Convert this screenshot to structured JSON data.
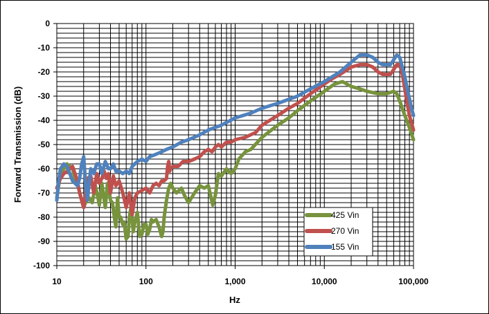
{
  "chart_data": {
    "type": "line",
    "title": "",
    "xlabel": "Hz",
    "ylabel": "Forward Transmission (dB)",
    "x_scale": "log",
    "xlim": [
      10,
      100000
    ],
    "ylim": [
      -100,
      0
    ],
    "x_ticks": [
      10,
      100,
      1000,
      10000,
      100000
    ],
    "x_tick_labels": [
      "10",
      "100",
      "1,000",
      "10,000",
      "100,000"
    ],
    "y_ticks": [
      0,
      -10,
      -20,
      -30,
      -40,
      -50,
      -60,
      -70,
      -80,
      -90,
      -100
    ],
    "y_tick_labels": [
      "0",
      "-10",
      "-20",
      "-30",
      "-40",
      "-50",
      "-60",
      "-70",
      "-80",
      "-90",
      "-100"
    ],
    "grid": true,
    "legend_position": "bottom-right",
    "series": [
      {
        "name": "425 Vin",
        "color": "#77933c",
        "points": [
          [
            10,
            -72
          ],
          [
            11,
            -62
          ],
          [
            12,
            -60
          ],
          [
            13,
            -58
          ],
          [
            15,
            -60
          ],
          [
            16,
            -64
          ],
          [
            17,
            -66
          ],
          [
            19,
            -73
          ],
          [
            20,
            -76
          ],
          [
            21,
            -74
          ],
          [
            23,
            -72
          ],
          [
            25,
            -74
          ],
          [
            27,
            -67
          ],
          [
            29,
            -72
          ],
          [
            30,
            -75
          ],
          [
            32,
            -66
          ],
          [
            35,
            -76
          ],
          [
            37,
            -66
          ],
          [
            39,
            -70
          ],
          [
            40,
            -73
          ],
          [
            42,
            -74
          ],
          [
            45,
            -82
          ],
          [
            46,
            -84
          ],
          [
            48,
            -72
          ],
          [
            50,
            -80
          ],
          [
            52,
            -80
          ],
          [
            55,
            -83
          ],
          [
            57,
            -82
          ],
          [
            60,
            -89
          ],
          [
            63,
            -88
          ],
          [
            65,
            -80
          ],
          [
            68,
            -76
          ],
          [
            72,
            -86
          ],
          [
            75,
            -82
          ],
          [
            80,
            -78
          ],
          [
            85,
            -88
          ],
          [
            90,
            -87
          ],
          [
            95,
            -83
          ],
          [
            100,
            -83
          ],
          [
            105,
            -87
          ],
          [
            110,
            -85
          ],
          [
            115,
            -81
          ],
          [
            120,
            -82
          ],
          [
            130,
            -81
          ],
          [
            140,
            -84
          ],
          [
            150,
            -88
          ],
          [
            155,
            -86
          ],
          [
            160,
            -80
          ],
          [
            170,
            -73
          ],
          [
            180,
            -68
          ],
          [
            190,
            -66
          ],
          [
            200,
            -68
          ],
          [
            220,
            -70
          ],
          [
            250,
            -68
          ],
          [
            270,
            -71
          ],
          [
            300,
            -74
          ],
          [
            350,
            -70
          ],
          [
            400,
            -67
          ],
          [
            450,
            -68
          ],
          [
            500,
            -67
          ],
          [
            530,
            -71
          ],
          [
            560,
            -75
          ],
          [
            600,
            -71
          ],
          [
            650,
            -62
          ],
          [
            700,
            -63
          ],
          [
            800,
            -60
          ],
          [
            900,
            -62
          ],
          [
            1000,
            -60
          ],
          [
            1100,
            -56
          ],
          [
            1300,
            -53
          ],
          [
            1500,
            -52
          ],
          [
            2000,
            -47
          ],
          [
            3000,
            -42
          ],
          [
            4000,
            -39
          ],
          [
            5000,
            -36
          ],
          [
            7000,
            -32
          ],
          [
            10000,
            -28
          ],
          [
            13000,
            -25
          ],
          [
            16000,
            -24
          ],
          [
            20000,
            -26
          ],
          [
            25000,
            -27
          ],
          [
            30000,
            -28
          ],
          [
            40000,
            -29
          ],
          [
            50000,
            -29
          ],
          [
            60000,
            -28
          ],
          [
            65000,
            -29
          ],
          [
            70000,
            -32
          ],
          [
            80000,
            -38
          ],
          [
            90000,
            -43
          ],
          [
            100000,
            -48
          ]
        ]
      },
      {
        "name": "270 Vin",
        "color": "#c0504d",
        "points": [
          [
            10,
            -68
          ],
          [
            11,
            -64
          ],
          [
            12,
            -62
          ],
          [
            13,
            -61
          ],
          [
            15,
            -59
          ],
          [
            16,
            -62
          ],
          [
            17,
            -65
          ],
          [
            18,
            -70
          ],
          [
            20,
            -76
          ],
          [
            22,
            -64
          ],
          [
            24,
            -63
          ],
          [
            26,
            -70
          ],
          [
            28,
            -62
          ],
          [
            30,
            -66
          ],
          [
            32,
            -64
          ],
          [
            34,
            -61
          ],
          [
            36,
            -64
          ],
          [
            38,
            -62
          ],
          [
            40,
            -70
          ],
          [
            43,
            -63
          ],
          [
            46,
            -67
          ],
          [
            50,
            -65
          ],
          [
            55,
            -70
          ],
          [
            60,
            -76
          ],
          [
            65,
            -70
          ],
          [
            70,
            -79
          ],
          [
            75,
            -72
          ],
          [
            80,
            -70
          ],
          [
            90,
            -69
          ],
          [
            100,
            -68
          ],
          [
            110,
            -70
          ],
          [
            120,
            -67
          ],
          [
            130,
            -66
          ],
          [
            140,
            -67
          ],
          [
            150,
            -65
          ],
          [
            160,
            -65
          ],
          [
            170,
            -64
          ],
          [
            175,
            -59
          ],
          [
            180,
            -57
          ],
          [
            185,
            -61
          ],
          [
            190,
            -60
          ],
          [
            200,
            -59
          ],
          [
            230,
            -59
          ],
          [
            260,
            -57
          ],
          [
            300,
            -57
          ],
          [
            350,
            -56
          ],
          [
            400,
            -55
          ],
          [
            450,
            -53
          ],
          [
            500,
            -52
          ],
          [
            550,
            -53
          ],
          [
            600,
            -51
          ],
          [
            650,
            -50
          ],
          [
            700,
            -51
          ],
          [
            800,
            -49
          ],
          [
            900,
            -49
          ],
          [
            1000,
            -48
          ],
          [
            1300,
            -47
          ],
          [
            1700,
            -45
          ],
          [
            2000,
            -42
          ],
          [
            3000,
            -38
          ],
          [
            4000,
            -35
          ],
          [
            5000,
            -33
          ],
          [
            7000,
            -29
          ],
          [
            10000,
            -25
          ],
          [
            12000,
            -23
          ],
          [
            15000,
            -21
          ],
          [
            20000,
            -18
          ],
          [
            25000,
            -17
          ],
          [
            30000,
            -17
          ],
          [
            35000,
            -18
          ],
          [
            40000,
            -20
          ],
          [
            45000,
            -21
          ],
          [
            50000,
            -21
          ],
          [
            55000,
            -21
          ],
          [
            60000,
            -19
          ],
          [
            65000,
            -17
          ],
          [
            70000,
            -17
          ],
          [
            75000,
            -21
          ],
          [
            80000,
            -27
          ],
          [
            85000,
            -33
          ],
          [
            90000,
            -38
          ],
          [
            95000,
            -41
          ],
          [
            100000,
            -44
          ]
        ]
      },
      {
        "name": "155 Vin",
        "color": "#4f81bd",
        "points": [
          [
            10,
            -73
          ],
          [
            10.5,
            -65
          ],
          [
            11,
            -60
          ],
          [
            12,
            -58
          ],
          [
            13,
            -59
          ],
          [
            14,
            -62
          ],
          [
            15,
            -65
          ],
          [
            16,
            -66
          ],
          [
            17,
            -67
          ],
          [
            18,
            -64
          ],
          [
            19,
            -58
          ],
          [
            20,
            -55
          ],
          [
            21,
            -66
          ],
          [
            22,
            -73
          ],
          [
            24,
            -60
          ],
          [
            26,
            -62
          ],
          [
            28,
            -58
          ],
          [
            30,
            -58
          ],
          [
            32,
            -62
          ],
          [
            35,
            -57
          ],
          [
            38,
            -60
          ],
          [
            40,
            -60
          ],
          [
            43,
            -58
          ],
          [
            46,
            -61
          ],
          [
            50,
            -61
          ],
          [
            55,
            -62
          ],
          [
            60,
            -61
          ],
          [
            65,
            -62
          ],
          [
            70,
            -59
          ],
          [
            80,
            -57
          ],
          [
            90,
            -56
          ],
          [
            100,
            -57
          ],
          [
            110,
            -55
          ],
          [
            130,
            -54
          ],
          [
            150,
            -53
          ],
          [
            170,
            -52
          ],
          [
            200,
            -51
          ],
          [
            250,
            -49
          ],
          [
            300,
            -48
          ],
          [
            400,
            -46
          ],
          [
            500,
            -44
          ],
          [
            700,
            -42
          ],
          [
            1000,
            -39
          ],
          [
            1500,
            -37
          ],
          [
            2000,
            -35
          ],
          [
            3000,
            -33
          ],
          [
            5000,
            -30
          ],
          [
            7000,
            -27
          ],
          [
            10000,
            -24
          ],
          [
            15000,
            -20
          ],
          [
            20000,
            -16
          ],
          [
            25000,
            -13
          ],
          [
            30000,
            -13
          ],
          [
            35000,
            -14
          ],
          [
            40000,
            -16
          ],
          [
            45000,
            -17
          ],
          [
            50000,
            -17
          ],
          [
            55000,
            -17
          ],
          [
            60000,
            -15
          ],
          [
            65000,
            -13
          ],
          [
            70000,
            -14
          ],
          [
            75000,
            -18
          ],
          [
            80000,
            -22
          ],
          [
            85000,
            -27
          ],
          [
            90000,
            -31
          ],
          [
            95000,
            -35
          ],
          [
            100000,
            -38
          ]
        ]
      }
    ]
  }
}
